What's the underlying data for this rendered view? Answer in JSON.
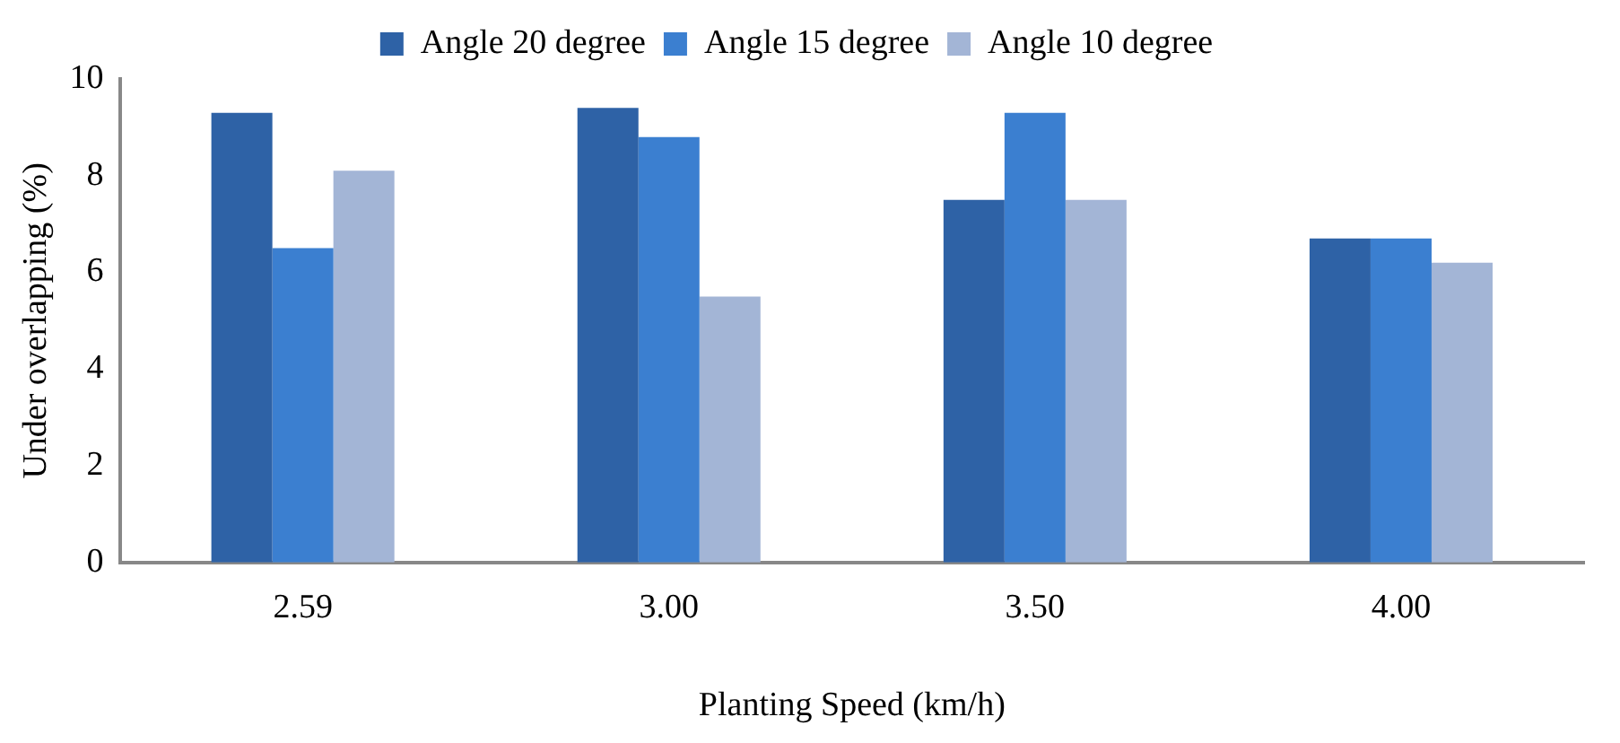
{
  "chart_data": {
    "type": "bar",
    "xlabel": "Planting Speed (km/h)",
    "ylabel": "Under overlapping (%)",
    "categories": [
      "2.59",
      "3.00",
      "3.50",
      "4.00"
    ],
    "series": [
      {
        "name": "Angle 20 degree",
        "color": "#2e62a6",
        "values": [
          9.3,
          9.4,
          7.5,
          6.7
        ]
      },
      {
        "name": "Angle 15 degree",
        "color": "#3b7fd0",
        "values": [
          6.5,
          8.8,
          9.3,
          6.7
        ]
      },
      {
        "name": "Angle 10 degree",
        "color": "#a3b5d6",
        "values": [
          8.1,
          5.5,
          7.5,
          6.2
        ]
      }
    ],
    "ylim": [
      0,
      10
    ],
    "yticks": [
      0,
      2,
      4,
      6,
      8,
      10
    ],
    "grid": false,
    "legend": "top"
  }
}
